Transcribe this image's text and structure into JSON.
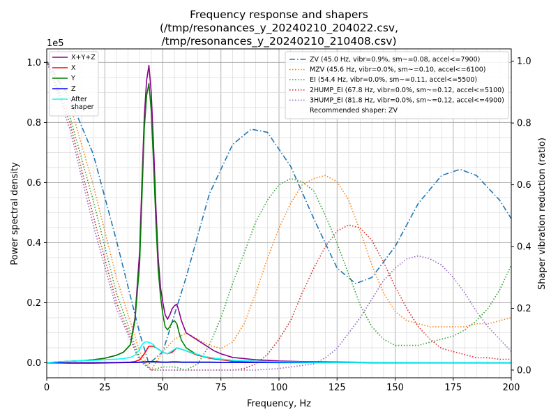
{
  "chart_data": {
    "type": "line",
    "title": [
      "Frequency response and shapers",
      "(/tmp/resonances_y_20240210_204022.csv,",
      "/tmp/resonances_y_20240210_210408.csv)"
    ],
    "xlabel": "Frequency, Hz",
    "ylabel": "Power spectral density",
    "y2label": "Shaper vibration reduction (ratio)",
    "y_scale_label": "1e5",
    "xlim": [
      0,
      200
    ],
    "ylim": [
      -0.05,
      1.045
    ],
    "y2lim": [
      -0.025,
      1.04
    ],
    "xticks": [
      0,
      25,
      50,
      75,
      100,
      125,
      150,
      175,
      200
    ],
    "xtick_labels": [
      "0",
      "25",
      "50",
      "75",
      "100",
      "125",
      "150",
      "175",
      "200"
    ],
    "yticks": [
      0.0,
      0.2,
      0.4,
      0.6,
      0.8,
      1.0
    ],
    "ytick_labels": [
      "0.0",
      "0.2",
      "0.4",
      "0.6",
      "0.8",
      "1.0"
    ],
    "y2ticks": [
      0.0,
      0.2,
      0.4,
      0.6,
      0.8,
      1.0
    ],
    "y2tick_labels": [
      "0.0",
      "0.2",
      "0.4",
      "0.6",
      "0.8",
      "1.0"
    ],
    "grid": true,
    "legend_left": {
      "placement": "top-left",
      "entries": [
        {
          "label": "X+Y+Z",
          "color": "#8b008b"
        },
        {
          "label": "X",
          "color": "#ff0000"
        },
        {
          "label": "Y",
          "color": "#008000"
        },
        {
          "label": "Z",
          "color": "#0000ff"
        },
        {
          "label": "After\nshaper",
          "color": "#00ffff"
        }
      ]
    },
    "legend_right": {
      "placement": "top-right",
      "entries": [
        {
          "label": "ZV (45.0 Hz, vibr=0.9%, sm~=0.08, accel<=7900)",
          "color": "#1f77b4",
          "dash": "dashdot"
        },
        {
          "label": "MZV (45.6 Hz, vibr=0.0%, sm~=0.10, accel<=6100)",
          "color": "#ff7f0e",
          "dash": "dotted"
        },
        {
          "label": "EI (54.4 Hz, vibr=0.0%, sm~=0.11, accel<=5500)",
          "color": "#2ca02c",
          "dash": "dotted"
        },
        {
          "label": "2HUMP_EI (67.8 Hz, vibr=0.0%, sm~=0.12, accel<=5100)",
          "color": "#d62728",
          "dash": "dotted"
        },
        {
          "label": "3HUMP_EI (81.8 Hz, vibr=0.0%, sm~=0.12, accel<=4900)",
          "color": "#9467bd",
          "dash": "dotted"
        },
        {
          "label": "Recommended shaper: ZV",
          "color": "",
          "dash": "none"
        }
      ]
    },
    "psd_series": [
      {
        "name": "X+Y+Z",
        "color": "#8b008b",
        "x": [
          0,
          5,
          10,
          15,
          20,
          25,
          30,
          33,
          36,
          38,
          40,
          41,
          42,
          43,
          44,
          45,
          46,
          47,
          48,
          49,
          50,
          51,
          52,
          53,
          54,
          55,
          56,
          57,
          58,
          60,
          62,
          64,
          66,
          68,
          70,
          72,
          75,
          80,
          90,
          100,
          110,
          120,
          130,
          140,
          150,
          160,
          170,
          180,
          190,
          200
        ],
        "y": [
          0.0,
          0.003,
          0.005,
          0.007,
          0.01,
          0.015,
          0.025,
          0.035,
          0.06,
          0.15,
          0.37,
          0.6,
          0.82,
          0.94,
          0.99,
          0.9,
          0.72,
          0.52,
          0.35,
          0.25,
          0.2,
          0.16,
          0.145,
          0.16,
          0.18,
          0.19,
          0.195,
          0.17,
          0.14,
          0.1,
          0.09,
          0.08,
          0.07,
          0.06,
          0.05,
          0.04,
          0.03,
          0.018,
          0.01,
          0.006,
          0.004,
          0.003,
          0.002,
          0.001,
          0.001,
          0.0005,
          0.0005,
          0.0005,
          0.0005,
          0.0005
        ]
      },
      {
        "name": "X",
        "color": "#ff0000",
        "x": [
          0,
          10,
          20,
          30,
          36,
          38,
          40,
          42,
          44,
          46,
          48,
          50,
          52,
          54,
          56,
          58,
          60,
          65,
          70,
          80,
          100,
          120,
          150,
          200
        ],
        "y": [
          0.0,
          0.0,
          0.0005,
          0.001,
          0.002,
          0.004,
          0.01,
          0.03,
          0.055,
          0.055,
          0.045,
          0.035,
          0.03,
          0.035,
          0.05,
          0.045,
          0.04,
          0.025,
          0.015,
          0.005,
          0.002,
          0.001,
          0.0005,
          0.0
        ]
      },
      {
        "name": "Y",
        "color": "#008000",
        "x": [
          0,
          5,
          10,
          15,
          20,
          25,
          30,
          33,
          36,
          38,
          40,
          41,
          42,
          43,
          44,
          45,
          46,
          47,
          48,
          49,
          50,
          51,
          52,
          53,
          54,
          55,
          56,
          57,
          58,
          60,
          62,
          64,
          66,
          68,
          70,
          72,
          75,
          80,
          90,
          100,
          110,
          120,
          130,
          140,
          150,
          160,
          170,
          180,
          190,
          200
        ],
        "y": [
          0.0,
          0.003,
          0.005,
          0.007,
          0.01,
          0.015,
          0.025,
          0.035,
          0.06,
          0.14,
          0.33,
          0.55,
          0.78,
          0.89,
          0.93,
          0.84,
          0.66,
          0.47,
          0.31,
          0.22,
          0.16,
          0.12,
          0.11,
          0.12,
          0.135,
          0.14,
          0.13,
          0.1,
          0.075,
          0.05,
          0.04,
          0.03,
          0.025,
          0.02,
          0.018,
          0.015,
          0.012,
          0.008,
          0.005,
          0.003,
          0.002,
          0.001,
          0.001,
          0.0005,
          0.0005,
          0.0,
          0.0,
          0.0,
          0.0,
          0.0
        ]
      },
      {
        "name": "Z",
        "color": "#0000ff",
        "x": [
          0,
          10,
          20,
          30,
          38,
          42,
          44,
          46,
          48,
          50,
          52,
          54,
          56,
          58,
          60,
          70,
          80,
          90,
          100,
          110,
          120,
          130,
          140,
          150,
          200
        ],
        "y": [
          0.0,
          -0.001,
          -0.001,
          0.0,
          0.001,
          0.003,
          0.004,
          0.004,
          0.003,
          0.002,
          0.002,
          0.003,
          0.003,
          0.002,
          0.002,
          0.002,
          0.001,
          0.001,
          0.0005,
          0.0005,
          0.0005,
          0.001,
          0.0,
          0.0,
          0.0
        ]
      },
      {
        "name": "After\nshaper",
        "color": "#00ffff",
        "x": [
          0,
          5,
          10,
          15,
          20,
          25,
          30,
          33,
          36,
          38,
          40,
          41,
          42,
          43,
          44,
          45,
          46,
          47,
          48,
          49,
          50,
          51,
          52,
          53,
          54,
          55,
          56,
          57,
          58,
          60,
          62,
          64,
          66,
          68,
          70,
          72,
          75,
          80,
          90,
          100,
          110,
          120,
          130,
          140,
          150,
          160,
          170,
          180,
          190,
          200
        ],
        "y": [
          0.0,
          0.003,
          0.005,
          0.007,
          0.008,
          0.01,
          0.012,
          0.014,
          0.018,
          0.025,
          0.045,
          0.06,
          0.068,
          0.07,
          0.068,
          0.065,
          0.06,
          0.05,
          0.045,
          0.04,
          0.035,
          0.032,
          0.03,
          0.035,
          0.04,
          0.045,
          0.05,
          0.048,
          0.045,
          0.04,
          0.035,
          0.03,
          0.025,
          0.02,
          0.017,
          0.015,
          0.012,
          0.008,
          0.005,
          0.003,
          0.002,
          0.001,
          0.001,
          0.0005,
          0.0005,
          0.0,
          0.0,
          0.0,
          0.0,
          0.0
        ]
      }
    ],
    "shaper_series": [
      {
        "name": "ZV",
        "color": "#1f77b4",
        "dash": "dashdot",
        "x": [
          0,
          10,
          20,
          30,
          40,
          44,
          50,
          60,
          70,
          80,
          88,
          95,
          105,
          115,
          125,
          133,
          140,
          150,
          160,
          170,
          178,
          185,
          195,
          200
        ],
        "y": [
          1.0,
          0.88,
          0.7,
          0.42,
          0.12,
          0.02,
          0.06,
          0.3,
          0.57,
          0.73,
          0.78,
          0.77,
          0.66,
          0.49,
          0.33,
          0.28,
          0.3,
          0.4,
          0.54,
          0.63,
          0.65,
          0.63,
          0.55,
          0.49
        ]
      },
      {
        "name": "MZV",
        "color": "#ff7f0e",
        "dash": "dotted",
        "x": [
          0,
          10,
          20,
          30,
          40,
          45,
          50,
          55,
          60,
          65,
          70,
          75,
          80,
          85,
          90,
          95,
          100,
          105,
          110,
          115,
          120,
          125,
          130,
          135,
          140,
          145,
          150,
          155,
          160,
          165,
          170,
          175,
          180,
          185,
          190,
          195,
          200
        ],
        "y": [
          1.0,
          0.86,
          0.6,
          0.3,
          0.06,
          0.0,
          0.06,
          0.1,
          0.12,
          0.1,
          0.08,
          0.07,
          0.09,
          0.15,
          0.25,
          0.36,
          0.46,
          0.54,
          0.6,
          0.62,
          0.63,
          0.61,
          0.55,
          0.45,
          0.34,
          0.25,
          0.19,
          0.16,
          0.15,
          0.14,
          0.14,
          0.14,
          0.14,
          0.15,
          0.15,
          0.16,
          0.17
        ]
      },
      {
        "name": "EI",
        "color": "#2ca02c",
        "dash": "dotted",
        "x": [
          0,
          10,
          20,
          30,
          40,
          45,
          50,
          55,
          60,
          65,
          70,
          75,
          80,
          85,
          90,
          95,
          100,
          105,
          110,
          115,
          120,
          125,
          130,
          135,
          140,
          145,
          150,
          155,
          160,
          165,
          170,
          175,
          180,
          185,
          190,
          195,
          200
        ],
        "y": [
          1.0,
          0.82,
          0.55,
          0.25,
          0.04,
          0.0,
          0.01,
          0.01,
          0.0,
          0.02,
          0.08,
          0.17,
          0.28,
          0.38,
          0.48,
          0.55,
          0.6,
          0.62,
          0.61,
          0.58,
          0.5,
          0.41,
          0.31,
          0.21,
          0.14,
          0.1,
          0.08,
          0.08,
          0.08,
          0.09,
          0.1,
          0.11,
          0.13,
          0.16,
          0.2,
          0.26,
          0.34
        ]
      },
      {
        "name": "2HUMP_EI",
        "color": "#d62728",
        "dash": "dotted",
        "x": [
          0,
          10,
          20,
          30,
          40,
          45,
          50,
          60,
          70,
          80,
          85,
          90,
          95,
          100,
          105,
          110,
          115,
          120,
          125,
          130,
          135,
          140,
          145,
          150,
          155,
          160,
          165,
          170,
          175,
          180,
          185,
          190,
          195,
          200
        ],
        "y": [
          1.0,
          0.8,
          0.5,
          0.22,
          0.03,
          0.0,
          0.0,
          0.0,
          0.0,
          0.0,
          0.005,
          0.02,
          0.05,
          0.1,
          0.16,
          0.25,
          0.33,
          0.4,
          0.45,
          0.47,
          0.46,
          0.42,
          0.35,
          0.27,
          0.2,
          0.14,
          0.1,
          0.07,
          0.06,
          0.05,
          0.04,
          0.04,
          0.035,
          0.035
        ]
      },
      {
        "name": "3HUMP_EI",
        "color": "#9467bd",
        "dash": "dotted",
        "x": [
          0,
          10,
          20,
          30,
          40,
          45,
          50,
          60,
          70,
          80,
          90,
          100,
          105,
          110,
          115,
          120,
          125,
          130,
          135,
          140,
          145,
          150,
          155,
          160,
          165,
          170,
          175,
          180,
          185,
          190,
          195,
          200
        ],
        "y": [
          1.0,
          0.78,
          0.47,
          0.2,
          0.03,
          0.0,
          0.0,
          0.0,
          0.0,
          0.0,
          0.0,
          0.005,
          0.01,
          0.015,
          0.02,
          0.04,
          0.07,
          0.12,
          0.17,
          0.23,
          0.29,
          0.33,
          0.36,
          0.37,
          0.36,
          0.34,
          0.3,
          0.25,
          0.19,
          0.14,
          0.1,
          0.06
        ]
      }
    ]
  }
}
